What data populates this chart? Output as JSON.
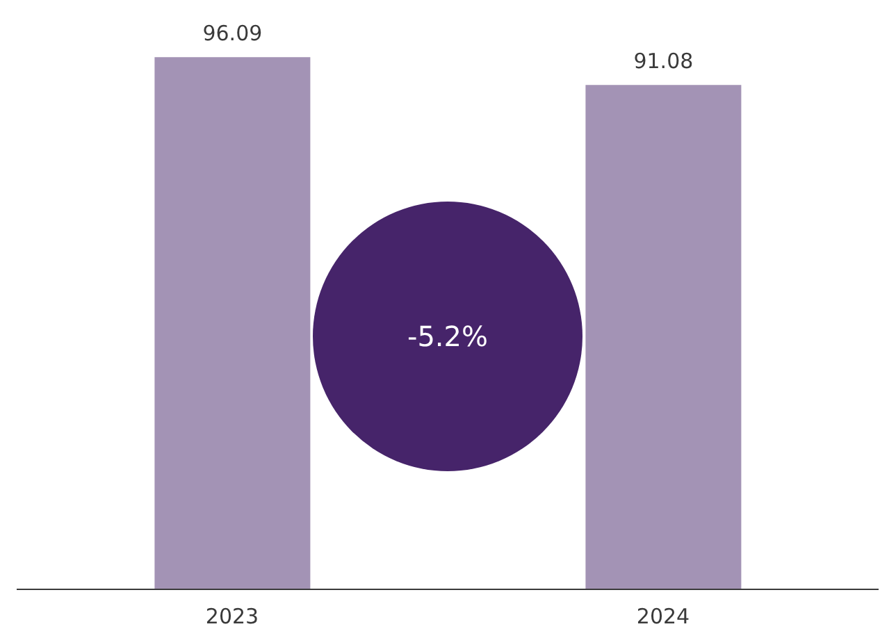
{
  "chart_data": {
    "type": "bar",
    "categories": [
      "2023",
      "2024"
    ],
    "values": [
      96.09,
      91.08
    ],
    "color": "#a393b5",
    "data_labels": true,
    "annotations": [
      "-5.2%"
    ]
  }
}
